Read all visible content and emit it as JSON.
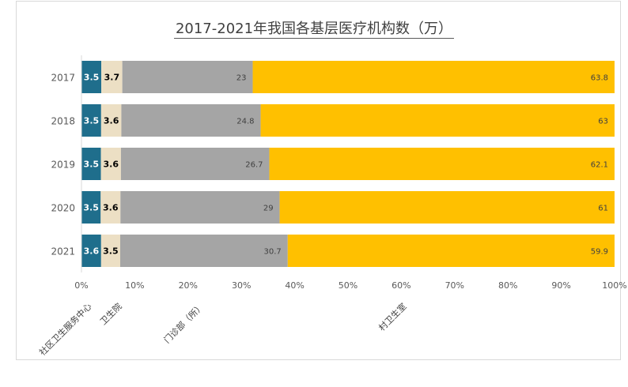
{
  "chart_data": {
    "type": "bar",
    "orientation": "horizontal",
    "stacked": "percent",
    "title": "2017-2021年我国各基层医疗机构数（万）",
    "categories": [
      "2017",
      "2018",
      "2019",
      "2020",
      "2021"
    ],
    "series": [
      {
        "name": "社区卫生服务中心",
        "color": "#1f6e8c",
        "values": [
          3.5,
          3.5,
          3.5,
          3.5,
          3.6
        ]
      },
      {
        "name": "卫生院",
        "color": "#ecdfc4",
        "values": [
          3.7,
          3.6,
          3.6,
          3.6,
          3.5
        ]
      },
      {
        "name": "门诊部（所）",
        "color": "#a5a5a5",
        "values": [
          23,
          24.8,
          26.7,
          29,
          30.7
        ]
      },
      {
        "name": "村卫生室",
        "color": "#ffc000",
        "values": [
          63.8,
          63,
          62.1,
          61,
          59.9
        ]
      }
    ],
    "xlim": [
      0,
      100
    ],
    "xticks": [
      "0%",
      "10%",
      "20%",
      "30%",
      "40%",
      "50%",
      "60%",
      "70%",
      "80%",
      "90%",
      "100%"
    ],
    "grid": false,
    "legend_position": "bottom"
  }
}
